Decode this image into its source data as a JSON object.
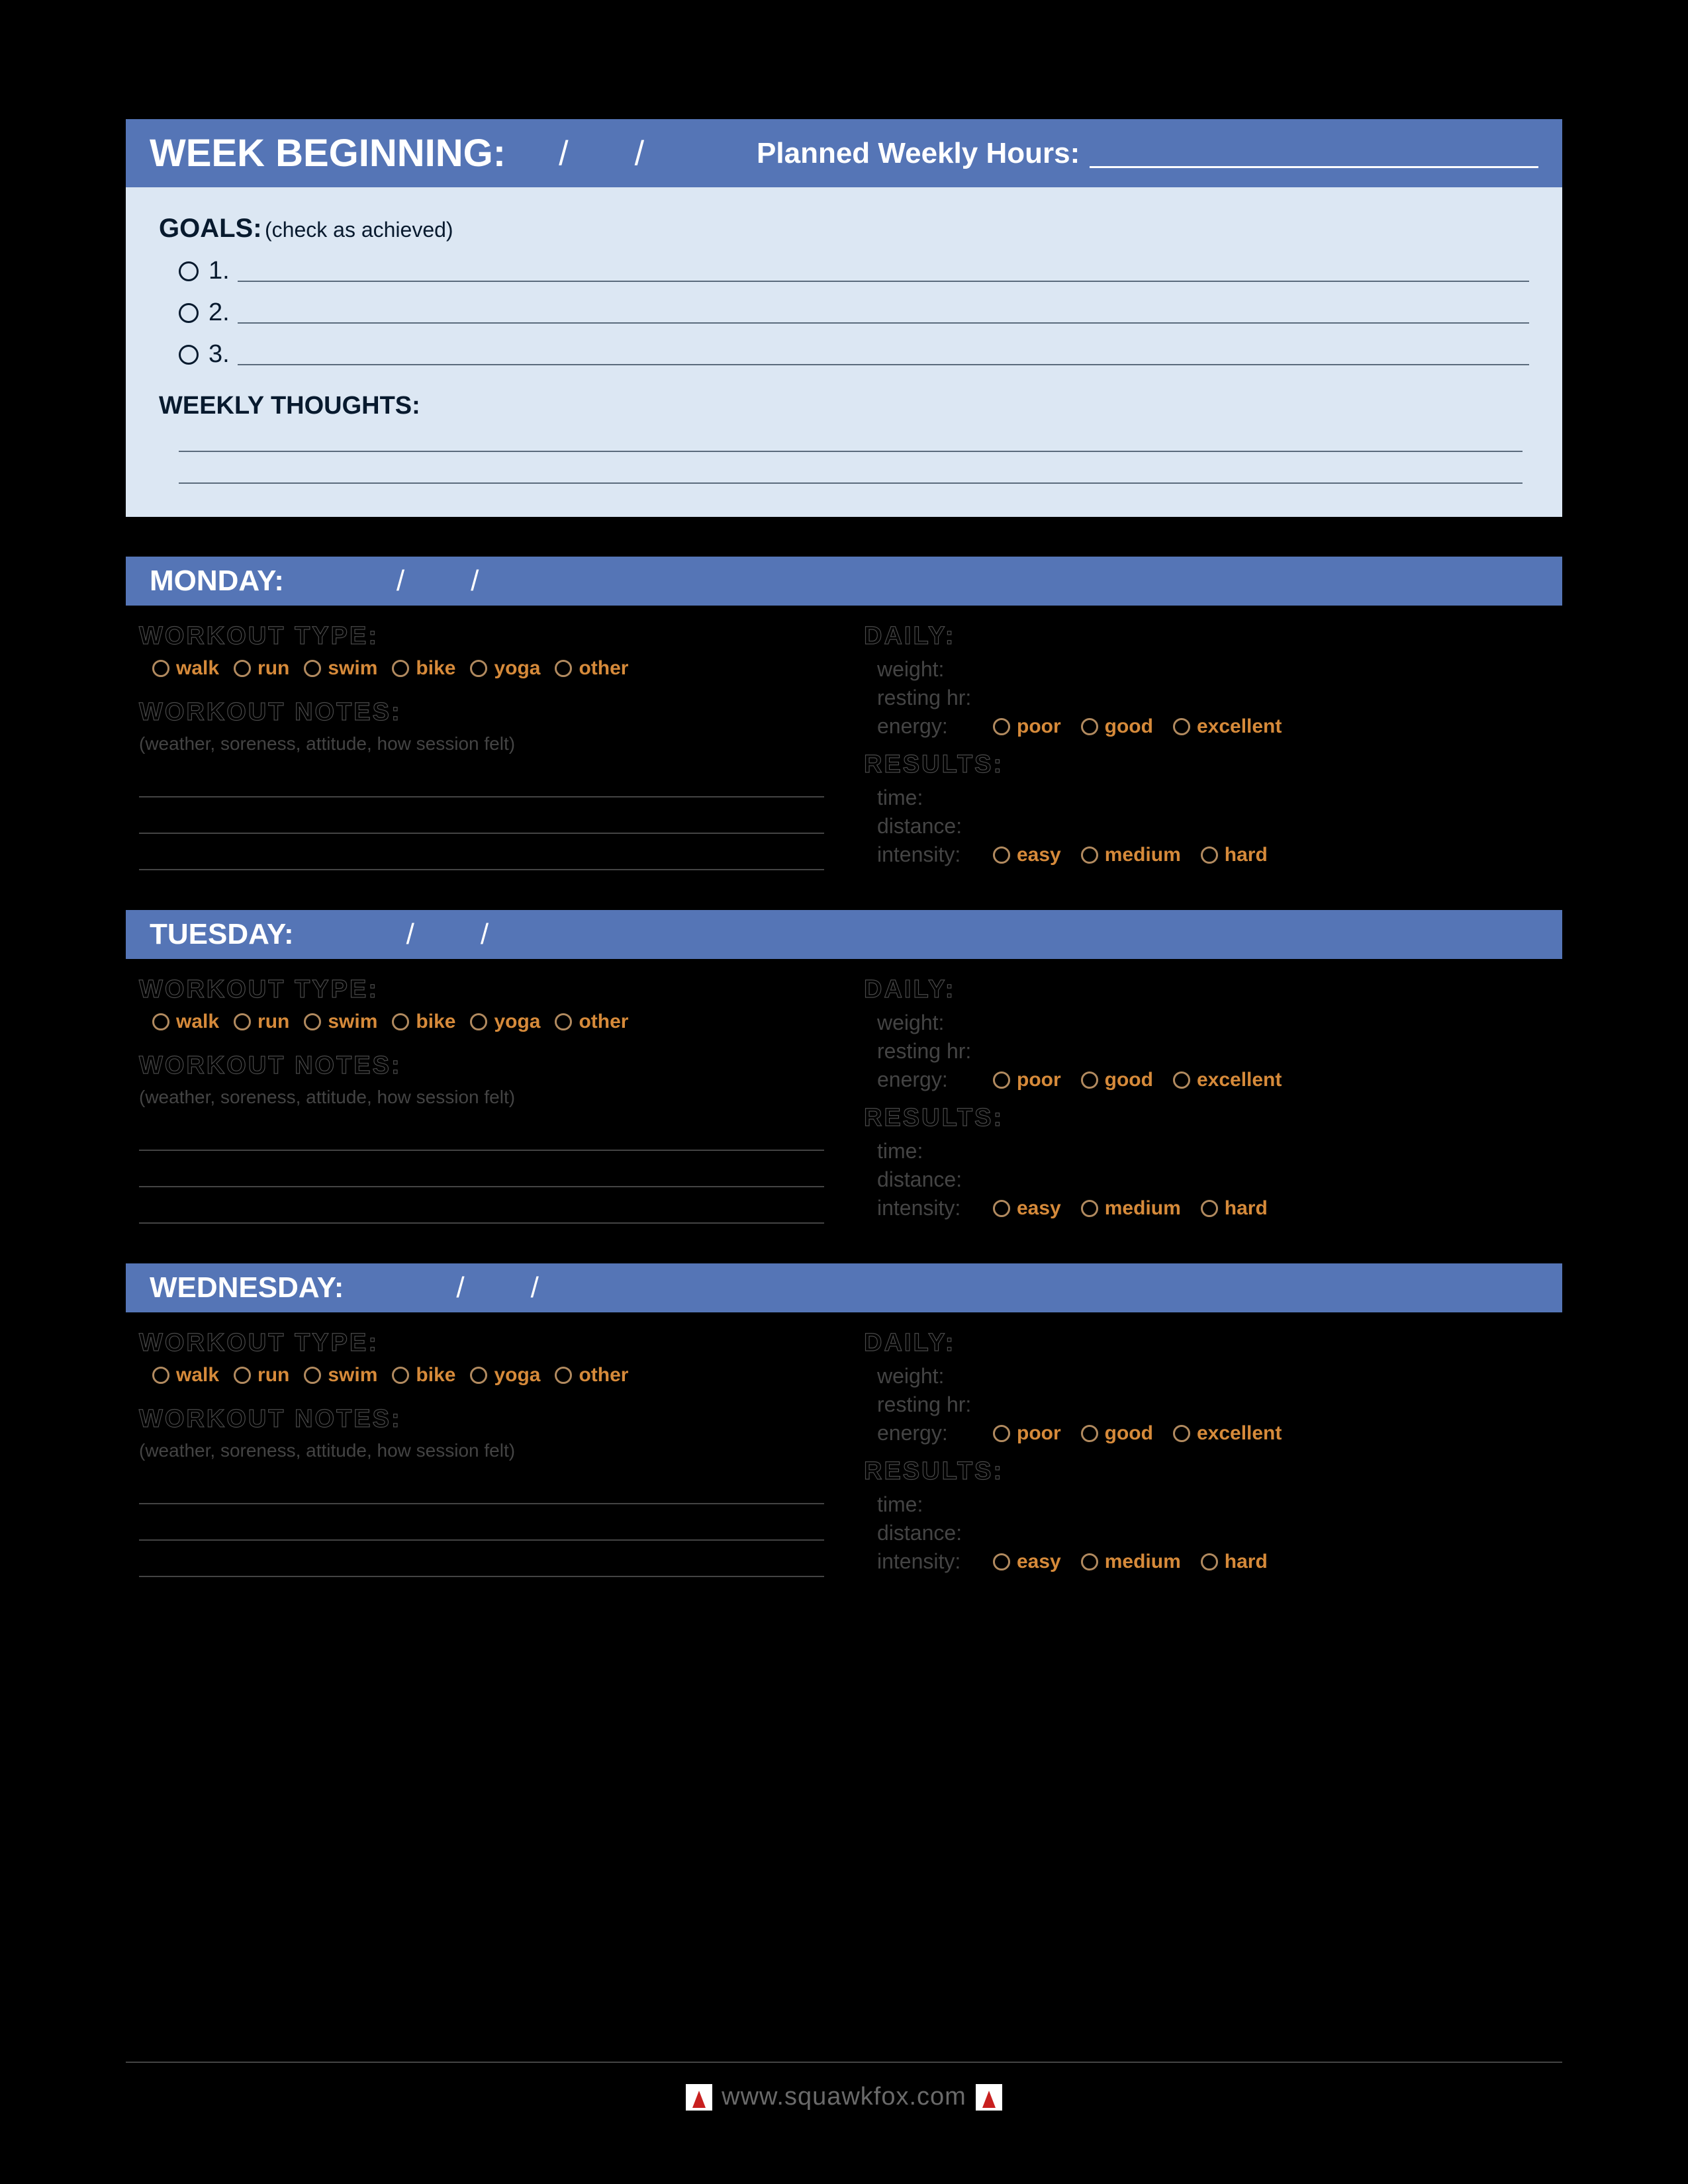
{
  "colors": {
    "page_bg": "#000000",
    "bar_bg": "#5575b6",
    "bar_text": "#ffffff",
    "goals_bg": "#dce7f3",
    "goals_text": "#081a2e",
    "outline_stroke": "#4a4a4a",
    "accent": "#d68a3a",
    "radio_border": "#b18a5f",
    "muted": "#444444",
    "footer_text": "#6a6a6a",
    "shoe_red": "#c8201f"
  },
  "header": {
    "title": "WEEK BEGINNING:",
    "date_sep": "/",
    "planned_label": "Planned Weekly Hours:"
  },
  "goals": {
    "title": "GOALS:",
    "hint": "(check as achieved)",
    "items": [
      "1.",
      "2.",
      "3."
    ],
    "thoughts_title": "WEEKLY THOUGHTS:",
    "thoughts_lines": 2
  },
  "workout_types": [
    "walk",
    "run",
    "swim",
    "bike",
    "yoga",
    "other"
  ],
  "energy_levels": [
    "poor",
    "good",
    "excellent"
  ],
  "intensity_levels": [
    "easy",
    "medium",
    "hard"
  ],
  "section_labels": {
    "workout_type": "WORKOUT TYPE:",
    "workout_notes": "WORKOUT NOTES:",
    "notes_hint": "(weather, soreness, attitude, how session felt)",
    "daily": "DAILY:",
    "weight": "weight:",
    "resting_hr": "resting hr:",
    "energy": "energy:",
    "results": "RESULTS:",
    "time": "time:",
    "distance": "distance:",
    "intensity": "intensity:"
  },
  "days": [
    {
      "name": "MONDAY:"
    },
    {
      "name": "TUESDAY:"
    },
    {
      "name": "WEDNESDAY:"
    }
  ],
  "footer": {
    "url": "www.squawkfox.com"
  }
}
